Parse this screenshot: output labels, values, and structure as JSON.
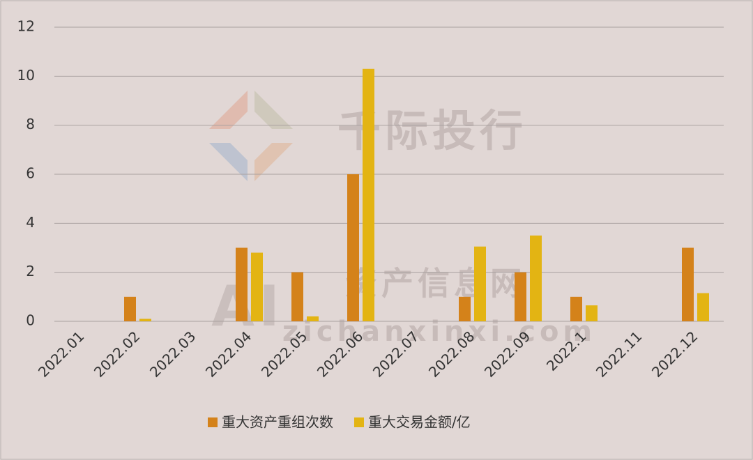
{
  "chart_data": {
    "type": "bar",
    "categories": [
      "2022.01",
      "2022.02",
      "2022.03",
      "2022.04",
      "2022.05",
      "2022.06",
      "2022.07",
      "2022.08",
      "2022.09",
      "2022.1",
      "2022.11",
      "2022.12"
    ],
    "series": [
      {
        "name": "重大资产重组次数",
        "color": "#d4821a",
        "values": [
          0,
          1,
          0,
          3,
          2,
          6,
          0,
          1,
          2,
          1,
          0,
          3
        ]
      },
      {
        "name": "重大交易金额/亿",
        "color": "#e3b413",
        "values": [
          0,
          0.1,
          0,
          2.8,
          0.2,
          10.3,
          0,
          3.05,
          3.5,
          0.65,
          0,
          1.15
        ]
      }
    ],
    "ylim": [
      0,
      12
    ],
    "yticks": [
      0,
      2,
      4,
      6,
      8,
      10,
      12
    ],
    "grid": true,
    "legend": "bottom",
    "watermarks": [
      "千际投行",
      "资产信息网",
      "zichanxinxi.com",
      "AI"
    ]
  }
}
